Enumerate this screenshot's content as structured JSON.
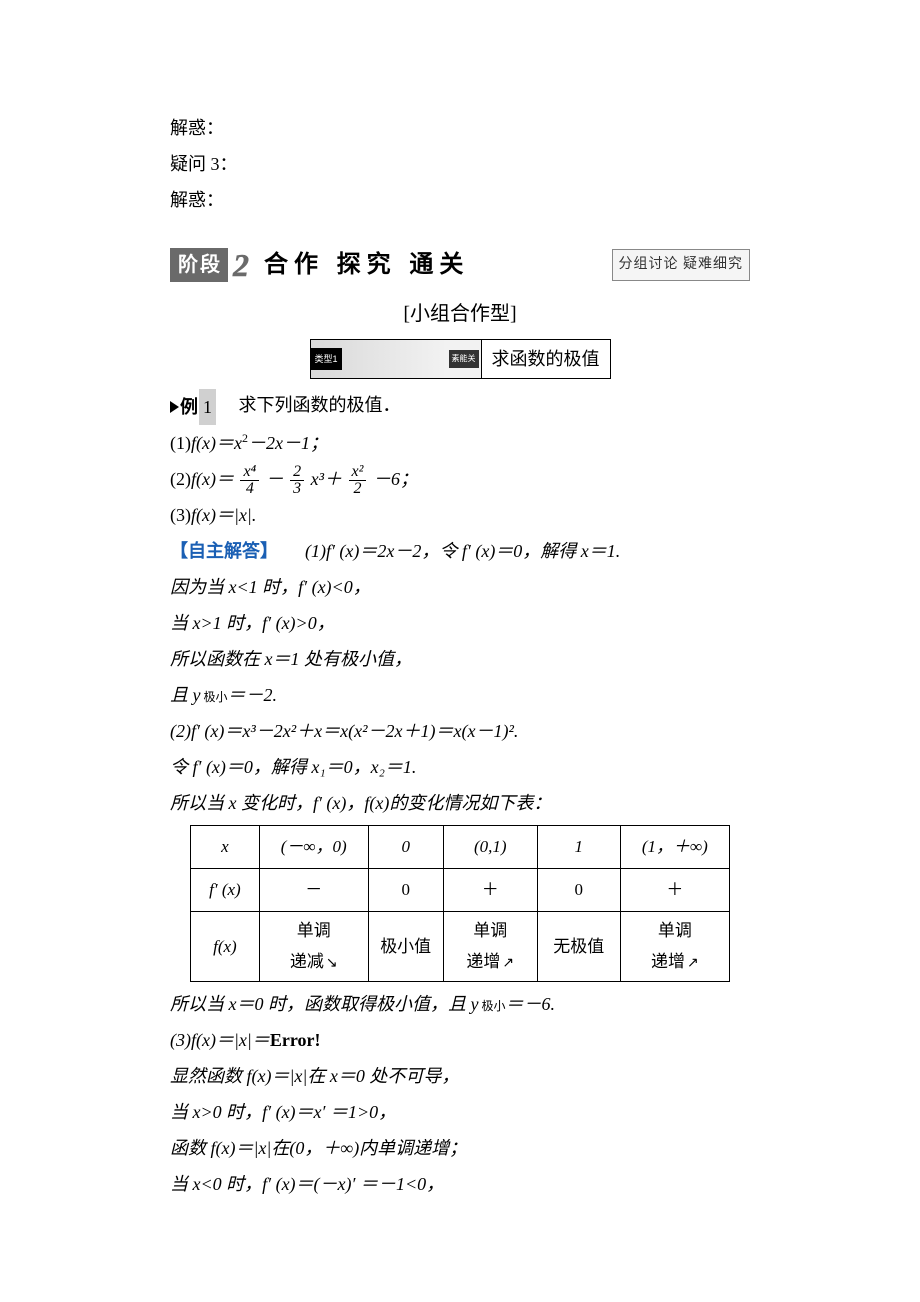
{
  "top_lines": {
    "l1": "解惑：",
    "l2": "疑问 3：",
    "l3": "解惑："
  },
  "banner": {
    "stage_label": "阶段",
    "stage_number": "2",
    "title": "合作 探究 通关",
    "right_tag": "分组讨论 疑难细究"
  },
  "subheader": "[小组合作型]",
  "type_strip": {
    "left_black": "类型1",
    "left_end": "素能关",
    "right_title": "求函数的极值"
  },
  "example": {
    "tri_label": "例",
    "num": "1",
    "prompt": "　求下列函数的极值．"
  },
  "problems": {
    "p1_prefix": "(1)",
    "p1_body_a": "f(x)＝x",
    "p1_body_exp": "2",
    "p1_body_b": "－2x－1；",
    "p2_prefix": "(2)",
    "p2_before": "f(x)＝",
    "p2_frac1_num": "x⁴",
    "p2_frac1_den": "4",
    "p2_mid1": "－",
    "p2_frac2_num": "2",
    "p2_frac2_den": "3",
    "p2_mid2": "x³＋",
    "p2_frac3_num": "x²",
    "p2_frac3_den": "2",
    "p2_tail": "－6；",
    "p3_prefix": "(3)",
    "p3_body": "f(x)＝|x|."
  },
  "answer_label": "【自主解答】",
  "solution1": {
    "l1a": "(1)f′ (x)＝2x－2，令 f′ (x)＝0，解得 x＝1.",
    "l2": "因为当 x<1 时，f′ (x)<0，",
    "l3": "当 x>1 时，f′ (x)>0，",
    "l4": "所以函数在 x＝1 处有极小值，",
    "l5a": "且 y",
    "l5sub": " 极小",
    "l5b": "＝－2."
  },
  "solution2": {
    "l1": "(2)f′ (x)＝x³－2x²＋x＝x(x²－2x＋1)＝x(x－1)².",
    "l2": "令 f′ (x)＝0，解得 x₁＝0，x₂＝1.",
    "l3": "所以当 x 变化时，f′ (x)，f(x)的变化情况如下表："
  },
  "table": {
    "columns": [
      "x",
      "(－∞，0)",
      "0",
      "(0,1)",
      "1",
      "(1，＋∞)"
    ],
    "row2_head": "f′ (x)",
    "row2": [
      "－",
      "0",
      "＋",
      "0",
      "＋"
    ],
    "row3_head": "f(x)",
    "row3": [
      {
        "line1": "单调",
        "line2": "递减",
        "arrow": "down"
      },
      {
        "text": "极小值"
      },
      {
        "line1": "单调",
        "line2": "递增",
        "arrow": "up"
      },
      {
        "text": "无极值"
      },
      {
        "line1": "单调",
        "line2": "递增",
        "arrow": "up"
      }
    ],
    "col_widths": [
      "60px",
      "110px",
      "70px",
      "90px",
      "80px",
      "110px"
    ]
  },
  "after_table": {
    "l1a": "所以当 x＝0 时，函数取得极小值，且 y",
    "l1sub": " 极小",
    "l1b": "＝－6."
  },
  "solution3": {
    "l1a": "(3)f(x)＝|x|＝",
    "l1b": "Error!",
    "l2": "显然函数 f(x)＝|x|在 x＝0 处不可导，",
    "l3": "当 x>0 时，f′ (x)＝x′ ＝1>0，",
    "l4": "函数 f(x)＝|x|在(0，＋∞)内单调递增；",
    "l5": "当 x<0 时，f′ (x)＝(－x)′ ＝－1<0，"
  },
  "styling": {
    "body_font_size_pt": 14,
    "body_line_height": 2.0,
    "text_color": "#000000",
    "background_color": "#ffffff",
    "blue_color": "#1a5fb4",
    "banner_bg": "#6a6a6a",
    "banner_text": "#ffffff",
    "table_border_color": "#000000"
  }
}
